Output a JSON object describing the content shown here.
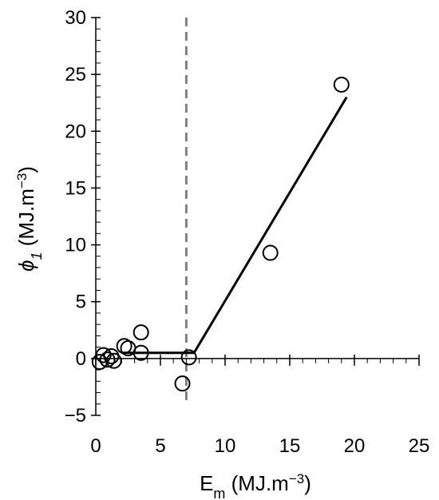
{
  "chart_data": {
    "type": "scatter",
    "xlabel": {
      "main": "E",
      "sub": "m",
      "unit": " (MJ.m",
      "sup": "−3",
      "close": ")"
    },
    "ylabel": {
      "main": "ϕ",
      "sub": "1",
      "unit": " (MJ.m",
      "sup": "−3",
      "close": ")"
    },
    "xlim": [
      0,
      25
    ],
    "ylim": [
      -5,
      30
    ],
    "xticks": [
      0,
      5,
      10,
      15,
      20,
      25
    ],
    "yticks": [
      -5,
      0,
      5,
      10,
      15,
      20,
      25,
      30
    ],
    "xtick_labels": [
      "0",
      "5",
      "10",
      "15",
      "20",
      "25"
    ],
    "ytick_labels": [
      "−5",
      "0",
      "5",
      "10",
      "15",
      "20",
      "25",
      "30"
    ],
    "x_minor_step": 1,
    "y_minor_step": 1,
    "grid": false,
    "points": [
      {
        "x": 0.3,
        "y": -0.3
      },
      {
        "x": 0.6,
        "y": 0.3
      },
      {
        "x": 0.9,
        "y": -0.1
      },
      {
        "x": 1.2,
        "y": 0.2
      },
      {
        "x": 1.4,
        "y": -0.2
      },
      {
        "x": 2.2,
        "y": 1.1
      },
      {
        "x": 2.5,
        "y": 0.9
      },
      {
        "x": 3.5,
        "y": 2.3
      },
      {
        "x": 3.5,
        "y": 0.5
      },
      {
        "x": 6.7,
        "y": -2.2
      },
      {
        "x": 7.2,
        "y": 0.1
      },
      {
        "x": 13.5,
        "y": 9.3
      },
      {
        "x": 19.0,
        "y": 24.1
      }
    ],
    "fit_line": [
      {
        "x": 2.0,
        "y": 0.5
      },
      {
        "x": 7.6,
        "y": 0.5
      },
      {
        "x": 19.4,
        "y": 23.0
      }
    ],
    "threshold_x": 7.0,
    "colors": {
      "points": "#000000",
      "fit_line": "#000000",
      "threshold": "#808080",
      "axes": "#000000"
    }
  }
}
